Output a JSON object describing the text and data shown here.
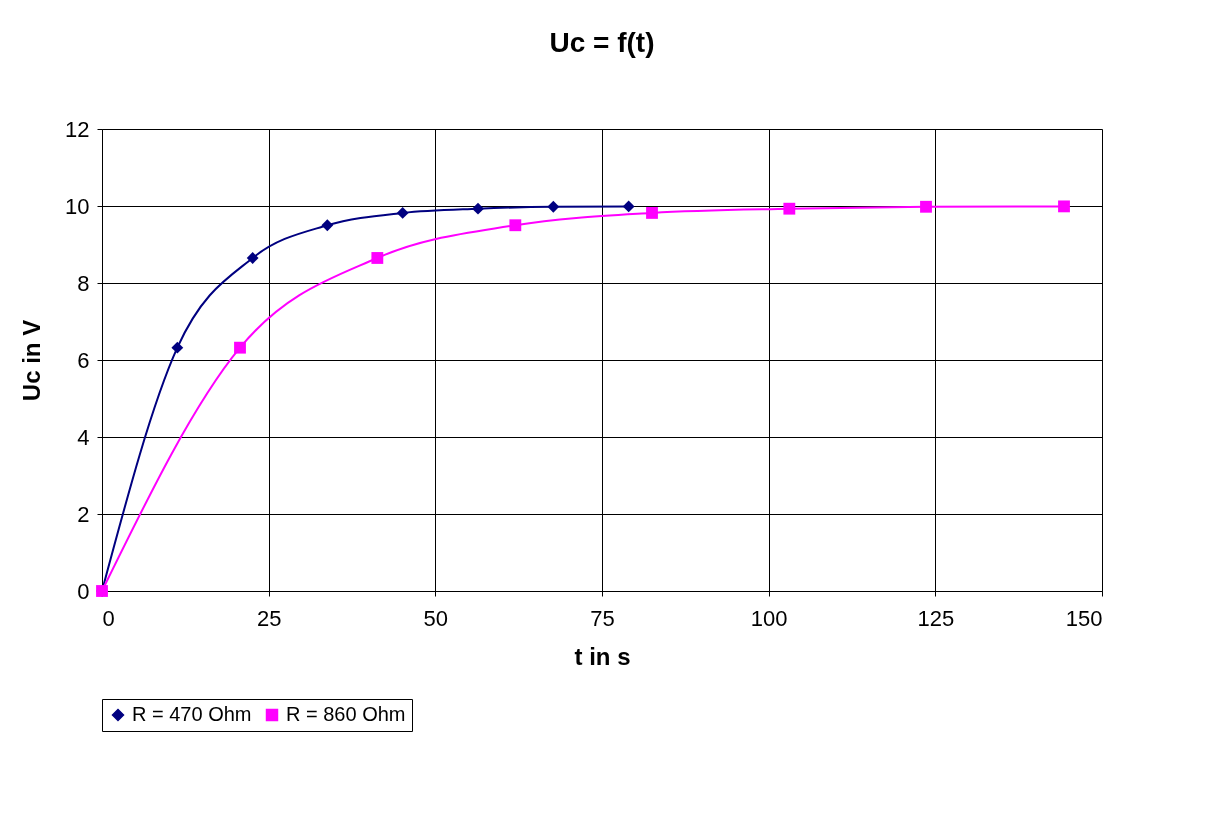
{
  "chart_data": {
    "type": "line",
    "title": "Uc = f(t)",
    "xlabel": "t in s",
    "ylabel": "Uc in V",
    "xlim": [
      0,
      150
    ],
    "xticks": [
      0,
      25,
      50,
      75,
      100,
      125,
      150
    ],
    "ylim": [
      0,
      12
    ],
    "yticks": [
      0,
      2,
      4,
      6,
      8,
      10,
      12
    ],
    "grid": true,
    "legend": "bottom",
    "series": [
      {
        "name": "R = 470 Ohm",
        "color": "#000080",
        "marker": "diamond",
        "x": [
          0,
          11.3,
          22.6,
          33.8,
          45.1,
          56.4,
          67.7,
          79.0
        ],
        "values": [
          0,
          6.32,
          8.65,
          9.5,
          9.82,
          9.93,
          9.98,
          9.99
        ]
      },
      {
        "name": "R = 860 Ohm",
        "color": "#ff00ff",
        "marker": "square",
        "x": [
          0,
          20.7,
          41.3,
          62.0,
          82.5,
          103.1,
          123.6,
          144.3
        ],
        "values": [
          0,
          6.32,
          8.65,
          9.5,
          9.82,
          9.93,
          9.98,
          9.99
        ]
      }
    ]
  }
}
